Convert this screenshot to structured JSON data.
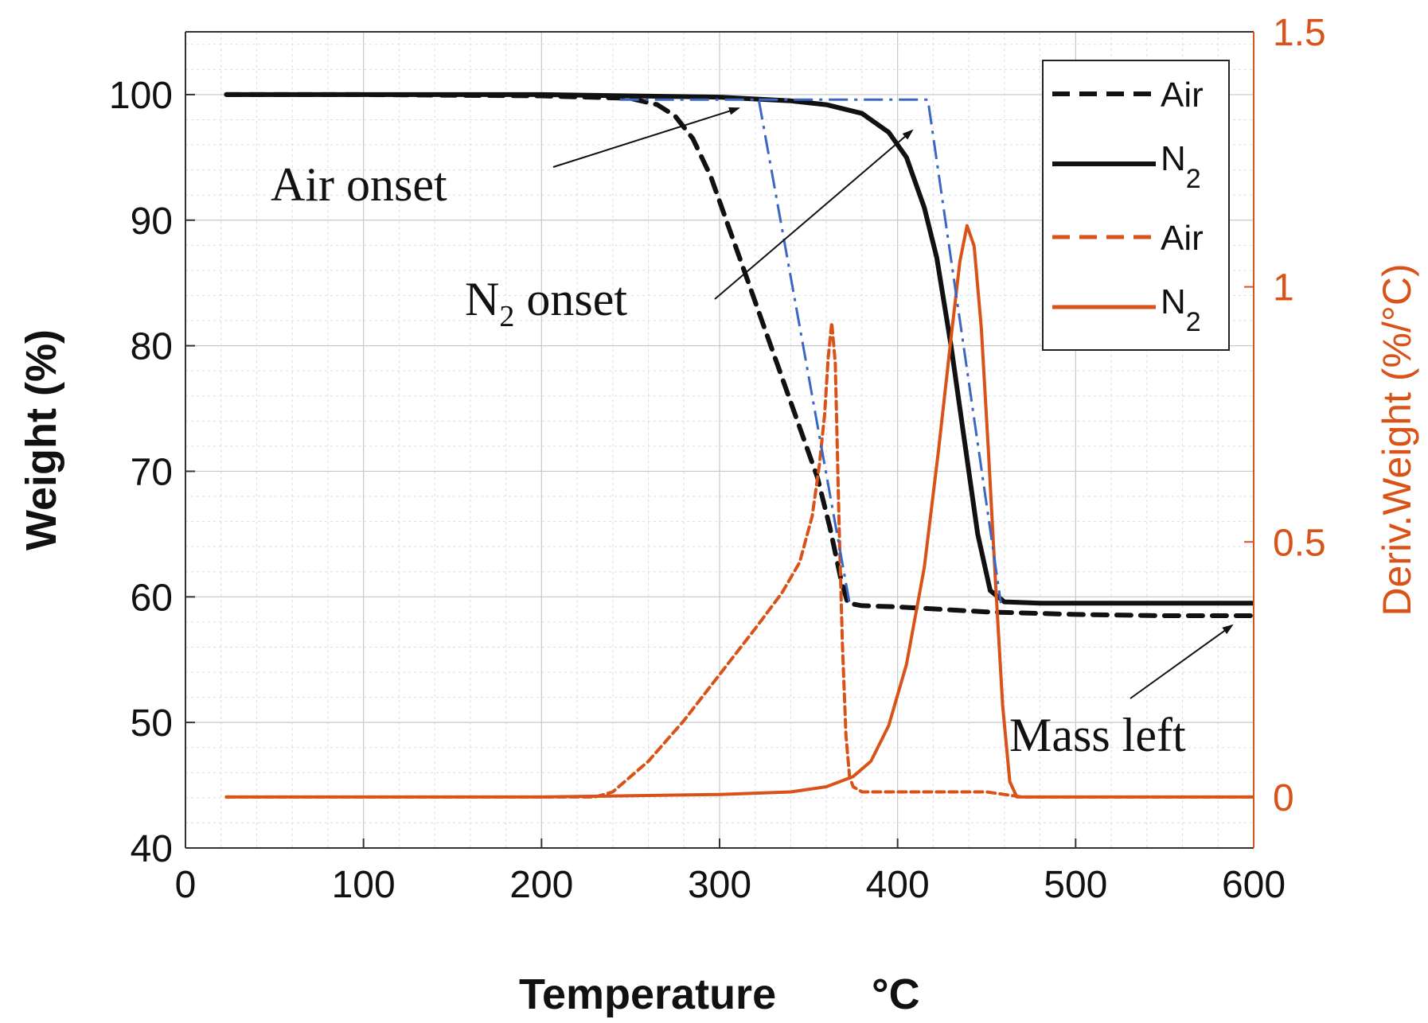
{
  "chart_data": {
    "type": "line",
    "xlabel": "Temperature",
    "xlabel_unit": "°C",
    "ylabel_left": "Weight (%)",
    "ylabel_right": "Deriv.Weight (%/°C)",
    "xlim": [
      0,
      600
    ],
    "ylim_left": [
      40,
      105
    ],
    "ylim_right": [
      -0.1,
      1.5
    ],
    "x_ticks": [
      "0",
      "100",
      "200",
      "300",
      "400",
      "500",
      "600"
    ],
    "y_ticks_left": [
      "40",
      "50",
      "60",
      "70",
      "80",
      "90",
      "100"
    ],
    "y_ticks_right": [
      "0",
      "0.5",
      "1",
      "1.5"
    ],
    "grid": true,
    "legend_position": "top-right",
    "series": [
      {
        "name": "Air",
        "axis": "left",
        "style": "dashed",
        "color": "#111111",
        "points": [
          [
            23,
            100
          ],
          [
            100,
            100
          ],
          [
            200,
            99.9
          ],
          [
            250,
            99.7
          ],
          [
            265,
            99.2
          ],
          [
            275,
            98.3
          ],
          [
            285,
            96.5
          ],
          [
            295,
            93.5
          ],
          [
            305,
            89.5
          ],
          [
            315,
            85.5
          ],
          [
            325,
            81.5
          ],
          [
            335,
            77.5
          ],
          [
            345,
            73.5
          ],
          [
            355,
            69.5
          ],
          [
            362,
            65.5
          ],
          [
            368,
            61.5
          ],
          [
            372,
            59.5
          ],
          [
            380,
            59.3
          ],
          [
            400,
            59.2
          ],
          [
            450,
            58.8
          ],
          [
            500,
            58.6
          ],
          [
            550,
            58.5
          ],
          [
            600,
            58.5
          ]
        ]
      },
      {
        "name": "N2",
        "axis": "left",
        "style": "solid",
        "color": "#111111",
        "points": [
          [
            23,
            100
          ],
          [
            200,
            100
          ],
          [
            300,
            99.8
          ],
          [
            340,
            99.5
          ],
          [
            360,
            99.2
          ],
          [
            380,
            98.5
          ],
          [
            395,
            97.0
          ],
          [
            405,
            95.0
          ],
          [
            415,
            91.0
          ],
          [
            422,
            87.0
          ],
          [
            430,
            80.0
          ],
          [
            437,
            73.0
          ],
          [
            445,
            65.0
          ],
          [
            452,
            60.5
          ],
          [
            460,
            59.6
          ],
          [
            480,
            59.5
          ],
          [
            600,
            59.5
          ]
        ]
      },
      {
        "name": "Air",
        "axis": "right",
        "style": "dashed",
        "color": "#d95319",
        "points": [
          [
            23,
            0
          ],
          [
            100,
            0
          ],
          [
            200,
            0
          ],
          [
            230,
            0
          ],
          [
            240,
            0.01
          ],
          [
            260,
            0.07
          ],
          [
            280,
            0.15
          ],
          [
            300,
            0.24
          ],
          [
            320,
            0.33
          ],
          [
            335,
            0.4
          ],
          [
            345,
            0.46
          ],
          [
            352,
            0.55
          ],
          [
            356,
            0.65
          ],
          [
            359,
            0.75
          ],
          [
            361,
            0.86
          ],
          [
            363,
            0.93
          ],
          [
            365,
            0.85
          ],
          [
            367,
            0.55
          ],
          [
            369,
            0.3
          ],
          [
            371,
            0.12
          ],
          [
            373,
            0.04
          ],
          [
            375,
            0.02
          ],
          [
            380,
            0.01
          ],
          [
            400,
            0.01
          ],
          [
            450,
            0.01
          ],
          [
            470,
            0
          ],
          [
            600,
            0
          ]
        ]
      },
      {
        "name": "N2",
        "axis": "right",
        "style": "solid",
        "color": "#d95319",
        "points": [
          [
            23,
            0
          ],
          [
            200,
            0
          ],
          [
            300,
            0.005
          ],
          [
            340,
            0.01
          ],
          [
            360,
            0.02
          ],
          [
            375,
            0.04
          ],
          [
            385,
            0.07
          ],
          [
            395,
            0.14
          ],
          [
            405,
            0.26
          ],
          [
            415,
            0.45
          ],
          [
            423,
            0.68
          ],
          [
            430,
            0.9
          ],
          [
            435,
            1.05
          ],
          [
            439,
            1.12
          ],
          [
            443,
            1.08
          ],
          [
            447,
            0.92
          ],
          [
            451,
            0.68
          ],
          [
            455,
            0.42
          ],
          [
            459,
            0.18
          ],
          [
            463,
            0.03
          ],
          [
            467,
            0
          ],
          [
            600,
            0
          ]
        ]
      }
    ],
    "onset_constructions": [
      {
        "name": "air-onset-line",
        "points": [
          [
            244,
            99.6
          ],
          [
            322,
            99.6
          ],
          [
            373,
            59.5
          ]
        ]
      },
      {
        "name": "n2-onset-line",
        "points": [
          [
            322,
            99.6
          ],
          [
            417,
            99.6
          ],
          [
            458,
            59.5
          ]
        ]
      }
    ],
    "annotations": [
      {
        "text": "Air onset",
        "target": [
          310,
          99
        ]
      },
      {
        "text": "N",
        "subscript": "2",
        "suffix": " onset",
        "target": [
          410,
          96.5
        ]
      },
      {
        "text": "Mass left",
        "target": [
          590,
          58.5
        ]
      }
    ],
    "legend": [
      {
        "label": "Air",
        "color": "#111111",
        "style": "dashed"
      },
      {
        "label": "N",
        "subscript": "2",
        "color": "#111111",
        "style": "solid"
      },
      {
        "label": "Air",
        "color": "#d95319",
        "style": "dashed"
      },
      {
        "label": "N",
        "subscript": "2",
        "color": "#d95319",
        "style": "solid"
      }
    ]
  }
}
